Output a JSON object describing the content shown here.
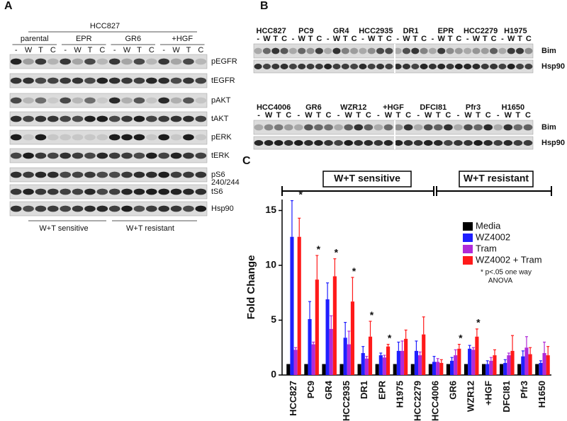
{
  "panel_a": {
    "label": "A",
    "header": "HCC827",
    "groups": [
      "parental",
      "EPR",
      "GR6",
      "+HGF"
    ],
    "lanes": [
      "-",
      "W",
      "T",
      "C"
    ],
    "rows": [
      "pEGFR",
      "tEGFR",
      "pAKT",
      "tAKT",
      "pERK",
      "tERK",
      "pS6",
      "tS6",
      "Hsp90"
    ],
    "row_sublabel": "240/244",
    "footer": [
      "W+T sensitive",
      "W+T resistant"
    ]
  },
  "panel_b": {
    "label": "B",
    "lanes": [
      "-",
      "W",
      "T",
      "C"
    ],
    "rows": [
      "Bim",
      "Hsp90"
    ],
    "blots": [
      {
        "groups": [
          "HCC827",
          "PC9",
          "GR4",
          "HCC2935",
          "DR1",
          "EPR",
          "HCC2279",
          "H1975"
        ]
      },
      {
        "groups": [
          "HCC4006",
          "GR6",
          "WZR12",
          "+HGF",
          "DFCI81",
          "Pfr3",
          "H1650"
        ]
      }
    ]
  },
  "panel_c_label": "C",
  "chart_data": {
    "type": "bar",
    "ylabel": "Fold Change",
    "brackets": [
      "W+T sensitive",
      "W+T resistant"
    ],
    "categories": [
      "HCC827",
      "PC9",
      "GR4",
      "HCC2935",
      "DR1",
      "EPR",
      "H1975",
      "HCC2279",
      "HCC4006",
      "GR6",
      "WZR12",
      "+HGF",
      "DFCI81",
      "Pfr3",
      "H1650"
    ],
    "series": [
      {
        "name": "Media",
        "color": "#000000",
        "values": [
          1,
          1,
          1,
          1,
          1,
          1,
          1,
          1,
          1,
          1,
          1,
          1,
          1,
          1,
          1
        ],
        "errors": [
          0,
          0,
          0,
          0,
          0,
          0,
          0,
          0,
          0,
          0,
          0,
          0,
          0,
          0,
          0
        ]
      },
      {
        "name": "WZ4002",
        "color": "#1f1fff",
        "values": [
          12.6,
          5.1,
          6.9,
          3.4,
          2.0,
          1.8,
          2.2,
          2.2,
          1.2,
          1.3,
          2.4,
          1.0,
          1.1,
          1.7,
          1.1
        ],
        "errors": [
          3.3,
          1.6,
          1.5,
          1.4,
          0.6,
          0.2,
          0.8,
          0.9,
          0.5,
          0.3,
          0.3,
          0.3,
          0.3,
          0.5,
          0.2
        ]
      },
      {
        "name": "Tram",
        "color": "#b02ad8",
        "values": [
          2.3,
          2.8,
          4.2,
          2.8,
          1.5,
          1.6,
          2.2,
          1.8,
          1.2,
          1.8,
          2.3,
          1.3,
          1.8,
          2.5,
          2.0
        ],
        "errors": [
          0.2,
          0.2,
          1.2,
          1.2,
          0.2,
          0.2,
          0.9,
          0.3,
          0.3,
          0.5,
          0.2,
          0.3,
          0.2,
          1.0,
          1.0
        ]
      },
      {
        "name": "WZ4002 + Tram",
        "color": "#ff1a1a",
        "values": [
          12.6,
          8.7,
          9.0,
          6.7,
          3.5,
          2.6,
          3.3,
          3.7,
          1.1,
          2.4,
          3.5,
          1.8,
          2.2,
          1.9,
          1.8
        ],
        "errors": [
          1.7,
          2.2,
          1.6,
          2.2,
          1.4,
          0.2,
          0.8,
          1.6,
          0.3,
          0.4,
          0.7,
          0.5,
          1.4,
          0.6,
          0.8
        ]
      }
    ],
    "significance_label": "*",
    "significant": [
      "HCC827",
      "PC9",
      "GR4",
      "HCC2935",
      "DR1",
      "EPR",
      "GR6",
      "WZR12"
    ],
    "footnote": [
      "* p<.05 one way",
      "ANOVA"
    ],
    "ylim": [
      0,
      16
    ],
    "yticks": [
      0,
      5,
      10,
      15
    ],
    "grid": false
  }
}
